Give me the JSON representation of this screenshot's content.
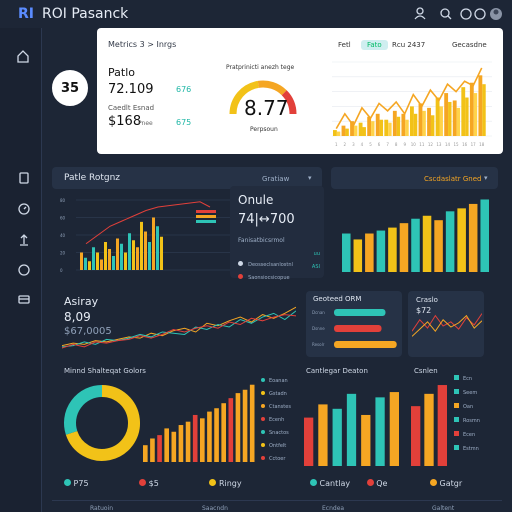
{
  "app": {
    "logo": "RI",
    "title": "ROI Pasanck"
  },
  "top_icons": [
    "user-icon",
    "search-icon",
    "user-circle-icon",
    "avatar"
  ],
  "sidebar": {
    "items": [
      "home-icon",
      "document-icon",
      "gauge-icon",
      "upload-icon",
      "refresh-icon",
      "card-icon"
    ]
  },
  "metrics_card": {
    "breadcrumb": "Metrics 3 > Inrgs",
    "badge": "35",
    "subtitle": "Patlo",
    "value1": "72.109",
    "value1_tag": "676",
    "sub_label": "Caedlt Esnad",
    "value2": "$168",
    "value2_sub": "Pnee",
    "value2_tag": "675",
    "gauge_title": "Pratprinicti anezh tege",
    "gauge_value": "8.77",
    "gauge_fraction": 0.75,
    "gauge_label": "Perpsoun",
    "chart_tabs": [
      "Fetl",
      "Fato",
      "Rcu 2437"
    ],
    "chart_dropdown": "Gecasdne",
    "colors": {
      "accent": "#f5a623",
      "yellow": "#f2c218",
      "red": "#e2403a",
      "teal": "#2ec4b6",
      "panel_bg": "#263246",
      "page_bg": "#1d2636"
    }
  },
  "section_bar_left": {
    "title": "Patle Rotgnz",
    "dropdown": "Gratiaw"
  },
  "section_bar_right": {
    "title": "Cscdaslatr Gned"
  },
  "overlay_panel": {
    "title": "Onule",
    "value": "74|↔700",
    "rows": [
      {
        "label": "Fanisatbicsrmol",
        "tag": ""
      },
      {
        "label": "Deosseclsanlostnl",
        "tag": "uu"
      },
      {
        "label": "Saonsiocsicopue",
        "tag": "ASI"
      }
    ]
  },
  "analytics": {
    "title": "Asiray",
    "value1": "8,09",
    "value2": "$67,0005"
  },
  "bar_panel": {
    "title": "Geoteed ORM",
    "labels": [
      "Dcnan",
      "Dsnne",
      "Resolr"
    ]
  },
  "mini_panel": {
    "title": "Craslo",
    "value": "$72"
  },
  "bottom_left": {
    "title": "Minnd Shalteqat Golors",
    "legend": [
      "Eoanan",
      "Gstadn",
      "Ctanstes",
      "Ecenh",
      "Snactos",
      "Ontfelt",
      "Cctoer"
    ],
    "footer": [
      "P75",
      "$5",
      "Ringy"
    ]
  },
  "bottom_right": {
    "title": "Cantlegar Deaton",
    "side_title": "Csnlen",
    "legend": [
      "Ecn",
      "Seem",
      "Oan",
      "Rosmn",
      "Ecen",
      "Estmn"
    ],
    "footer": [
      "Cantlay",
      "Qe",
      "Gatgr"
    ]
  },
  "footer_tabs": [
    "Ratuoin",
    "Saacndn",
    "Ecndea",
    "Galtent"
  ],
  "chart_data": [
    {
      "type": "bar",
      "name": "header-mini-chart",
      "categories": [
        "1",
        "2",
        "3",
        "4",
        "5",
        "6",
        "7",
        "8",
        "9",
        "10",
        "11",
        "12",
        "13",
        "14",
        "15",
        "16",
        "17",
        "18"
      ],
      "series": [
        {
          "values": [
            8,
            14,
            20,
            18,
            26,
            30,
            22,
            34,
            30,
            40,
            44,
            38,
            52,
            58,
            48,
            66,
            72,
            82
          ]
        },
        {
          "values": [
            6,
            10,
            14,
            12,
            20,
            22,
            18,
            26,
            22,
            30,
            34,
            28,
            40,
            46,
            38,
            52,
            58,
            70
          ]
        }
      ],
      "line": [
        10,
        30,
        14,
        38,
        24,
        44,
        34,
        46,
        30,
        56,
        40,
        62,
        48,
        70,
        60,
        74,
        68,
        92
      ],
      "ylim": [
        0,
        100
      ],
      "xticks": [
        "1",
        "2",
        "3",
        "4",
        "5",
        "6",
        "7",
        "8",
        "9",
        "10",
        "11",
        "12",
        "13",
        "14",
        "15",
        "16",
        "17",
        "18"
      ]
    },
    {
      "type": "bar",
      "name": "left-grouped-bars",
      "categories": [
        "1",
        "2",
        "3",
        "4",
        "5",
        "6",
        "7"
      ],
      "series": [
        {
          "values": [
            20,
            26,
            32,
            36,
            42,
            55,
            60
          ]
        },
        {
          "values": [
            14,
            20,
            24,
            30,
            34,
            44,
            50
          ]
        },
        {
          "values": [
            10,
            12,
            16,
            20,
            26,
            32,
            38
          ]
        }
      ],
      "line": [
        30,
        40,
        50,
        56,
        62,
        68,
        72
      ],
      "ylim": [
        0,
        80
      ],
      "yticks": [
        "80",
        "60",
        "40",
        "20",
        "0"
      ]
    },
    {
      "type": "bar",
      "name": "right-bars",
      "categories": [
        "1",
        "2",
        "3",
        "4",
        "5",
        "6",
        "7",
        "8",
        "9",
        "10",
        "11",
        "12",
        "13"
      ],
      "values": [
        52,
        44,
        52,
        56,
        60,
        66,
        72,
        76,
        70,
        82,
        86,
        92,
        98
      ],
      "ylim": [
        0,
        100
      ]
    },
    {
      "type": "line",
      "name": "analytics-lines",
      "x": [
        1,
        2,
        3,
        4,
        5,
        6,
        7,
        8,
        9,
        10,
        11,
        12,
        13,
        14,
        15,
        16,
        17,
        18,
        19,
        20,
        21,
        22
      ],
      "series": [
        {
          "values": [
            20,
            24,
            22,
            28,
            26,
            30,
            34,
            32,
            40,
            36,
            44,
            48,
            42,
            56,
            52,
            60,
            66,
            58,
            70,
            64,
            72,
            82
          ]
        },
        {
          "values": [
            18,
            20,
            26,
            22,
            30,
            28,
            32,
            38,
            34,
            42,
            40,
            38,
            50,
            46,
            54,
            50,
            62,
            56,
            66,
            72,
            62,
            76
          ]
        },
        {
          "values": [
            16,
            22,
            18,
            26,
            24,
            28,
            30,
            36,
            32,
            38,
            46,
            42,
            48,
            52,
            48,
            58,
            54,
            64,
            60,
            66,
            70,
            68
          ]
        }
      ],
      "ylim": [
        0,
        100
      ]
    },
    {
      "type": "bar",
      "name": "horizontal-bars",
      "categories": [
        "Dcnan",
        "Dsnne",
        "Resolr"
      ],
      "values": [
        78,
        72,
        95
      ],
      "ylim": [
        0,
        100
      ]
    },
    {
      "type": "line",
      "name": "mini-lines",
      "x": [
        1,
        2,
        3,
        4,
        5,
        6,
        7,
        8,
        9,
        10
      ],
      "series": [
        {
          "values": [
            40,
            62,
            46,
            70,
            50,
            58,
            44,
            66,
            52,
            74
          ]
        },
        {
          "values": [
            30,
            44,
            58,
            40,
            62,
            48,
            56,
            70,
            46,
            60
          ]
        }
      ],
      "ylim": [
        0,
        100
      ]
    },
    {
      "type": "pie",
      "name": "donut",
      "values": [
        70,
        30
      ]
    },
    {
      "type": "bar",
      "name": "bottom-left-bars",
      "categories": [
        "1",
        "2",
        "3",
        "4",
        "5",
        "6",
        "7",
        "8",
        "9",
        "10",
        "11",
        "12",
        "13",
        "14",
        "15",
        "16"
      ],
      "values": [
        20,
        28,
        32,
        40,
        36,
        44,
        48,
        56,
        52,
        60,
        64,
        70,
        76,
        82,
        86,
        92
      ],
      "ylim": [
        0,
        100
      ]
    },
    {
      "type": "bar",
      "name": "bottom-right-bars",
      "categories": [
        "1",
        "2",
        "3",
        "4",
        "5",
        "6",
        "7"
      ],
      "values": [
        55,
        70,
        65,
        82,
        58,
        78,
        84
      ],
      "ylim": [
        0,
        100
      ]
    },
    {
      "type": "bar",
      "name": "bottom-side-bars",
      "categories": [
        "1",
        "2",
        "3"
      ],
      "values": [
        68,
        82,
        92
      ],
      "ylim": [
        0,
        100
      ]
    }
  ]
}
